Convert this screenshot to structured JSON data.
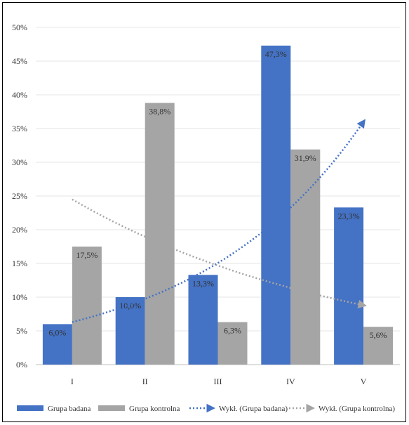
{
  "chart_data": {
    "type": "bar",
    "categories": [
      "I",
      "II",
      "III",
      "IV",
      "V"
    ],
    "ylim": [
      0,
      50
    ],
    "y_ticks": [
      "0%",
      "5%",
      "10%",
      "15%",
      "20%",
      "25%",
      "30%",
      "35%",
      "40%",
      "45%",
      "50%"
    ],
    "grid": true,
    "legend_position": "bottom",
    "series": [
      {
        "name": "Grupa badana",
        "color": "#4472C4",
        "values": [
          6.0,
          10.0,
          13.3,
          47.3,
          23.3
        ],
        "labels": [
          "6,0%",
          "10,0%",
          "13,3%",
          "47,3%",
          "23,3%"
        ]
      },
      {
        "name": "Grupa kontrolna",
        "color": "#A5A5A5",
        "values": [
          17.5,
          38.8,
          6.3,
          31.9,
          5.6
        ],
        "labels": [
          "17,5%",
          "38,8%",
          "6,3%",
          "31,9%",
          "5,6%"
        ]
      }
    ],
    "trendlines": [
      {
        "name": "Wykł. (Grupa badana)",
        "type": "exponential",
        "series": "Grupa badana",
        "color": "#4472C4",
        "start": 6.3,
        "end": 36.0
      },
      {
        "name": "Wykł. (Grupa kontrolna)",
        "type": "exponential",
        "series": "Grupa kontrolna",
        "color": "#A5A5A5",
        "start": 24.5,
        "end": 8.8
      }
    ]
  }
}
